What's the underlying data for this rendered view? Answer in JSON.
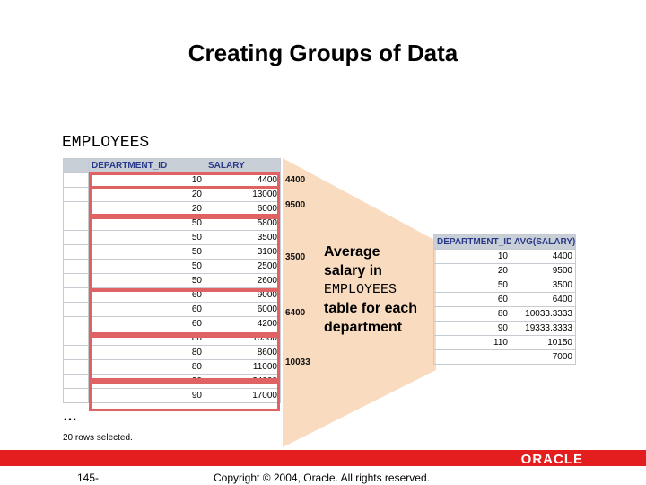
{
  "title": "Creating Groups of Data",
  "table_label": "EMPLOYEES",
  "left_table": {
    "headers": [
      "DEPARTMENT_ID",
      "SALARY"
    ],
    "rows": [
      {
        "dept": "10",
        "salary": "4400"
      },
      {
        "dept": "20",
        "salary": "13000"
      },
      {
        "dept": "20",
        "salary": "6000"
      },
      {
        "dept": "50",
        "salary": "5800"
      },
      {
        "dept": "50",
        "salary": "3500"
      },
      {
        "dept": "50",
        "salary": "3100"
      },
      {
        "dept": "50",
        "salary": "2500"
      },
      {
        "dept": "50",
        "salary": "2600"
      },
      {
        "dept": "60",
        "salary": "9000"
      },
      {
        "dept": "60",
        "salary": "6000"
      },
      {
        "dept": "60",
        "salary": "4200"
      },
      {
        "dept": "80",
        "salary": "10500"
      },
      {
        "dept": "80",
        "salary": "8600"
      },
      {
        "dept": "80",
        "salary": "11000"
      },
      {
        "dept": "90",
        "salary": "24000"
      },
      {
        "dept": "90",
        "salary": "17000"
      }
    ]
  },
  "group_averages": [
    "4400",
    "9500",
    "3500",
    "6400",
    "10033"
  ],
  "description": {
    "line1": "Average",
    "line2": "salary in",
    "line3": "EMPLOYEES",
    "line4": "table for each",
    "line5": "department"
  },
  "right_table": {
    "headers": [
      "DEPARTMENT_ID",
      "AVG(SALARY)"
    ],
    "rows": [
      {
        "dept": "10",
        "avg": "4400"
      },
      {
        "dept": "20",
        "avg": "9500"
      },
      {
        "dept": "50",
        "avg": "3500"
      },
      {
        "dept": "60",
        "avg": "6400"
      },
      {
        "dept": "80",
        "avg": "10033.3333"
      },
      {
        "dept": "90",
        "avg": "19333.3333"
      },
      {
        "dept": "110",
        "avg": "10150"
      },
      {
        "dept": "",
        "avg": "7000"
      }
    ]
  },
  "ellipsis": "…",
  "rows_selected": "20 rows selected.",
  "footer": {
    "page": "145-",
    "copyright": "Copyright © 2004, Oracle.  All rights reserved.",
    "logo": "ORACLE"
  },
  "colors": {
    "group_box": "#e06363",
    "header_bg": "#c9cfd6",
    "header_text": "#2a3a8a",
    "funnel": "#f9dcc0",
    "footer_bar": "#e41e1e"
  }
}
